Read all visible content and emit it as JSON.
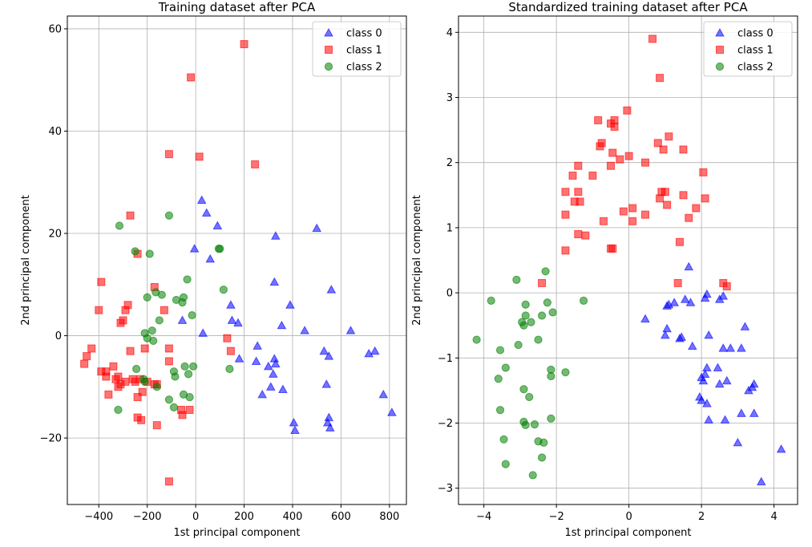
{
  "chart_data": [
    {
      "type": "scatter",
      "title": "Training dataset after PCA",
      "xlabel": "1st principal component",
      "ylabel": "2nd principal component",
      "xlim": [
        -530,
        870
      ],
      "ylim": [
        -33,
        62.5
      ],
      "xticks": [
        -400,
        -200,
        0,
        200,
        400,
        600,
        800
      ],
      "yticks": [
        -20,
        0,
        20,
        40,
        60
      ],
      "xtick_labels": [
        "−400",
        "−200",
        "0",
        "200",
        "400",
        "600",
        "800"
      ],
      "ytick_labels": [
        "−20",
        "0",
        "20",
        "40",
        "60"
      ],
      "grid": true,
      "legend_position": "top-right",
      "series": [
        {
          "name": "class 0",
          "marker": "triangle",
          "color": "#0000ff",
          "points": [
            [
              25,
              26.5
            ],
            [
              45,
              24
            ],
            [
              90,
              21.5
            ],
            [
              60,
              15
            ],
            [
              30,
              0.5
            ],
            [
              -55,
              3
            ],
            [
              -5,
              17
            ],
            [
              145,
              6
            ],
            [
              150,
              3
            ],
            [
              175,
              2.5
            ],
            [
              330,
              19.5
            ],
            [
              325,
              10.5
            ],
            [
              390,
              6
            ],
            [
              500,
              21
            ],
            [
              560,
              9
            ],
            [
              355,
              2
            ],
            [
              450,
              1
            ],
            [
              640,
              1
            ],
            [
              180,
              -4.5
            ],
            [
              250,
              -5
            ],
            [
              255,
              -2
            ],
            [
              300,
              -6
            ],
            [
              320,
              -7.5
            ],
            [
              325,
              -4.5
            ],
            [
              330,
              -5.5
            ],
            [
              360,
              -10.5
            ],
            [
              310,
              -10
            ],
            [
              275,
              -11.5
            ],
            [
              530,
              -3
            ],
            [
              550,
              -4
            ],
            [
              540,
              -9.5
            ],
            [
              715,
              -3.5
            ],
            [
              740,
              -3
            ],
            [
              775,
              -11.5
            ],
            [
              810,
              -15
            ],
            [
              405,
              -17
            ],
            [
              410,
              -18.5
            ],
            [
              550,
              -16
            ],
            [
              545,
              -17
            ],
            [
              555,
              -18
            ]
          ]
        },
        {
          "name": "class 1",
          "marker": "square",
          "color": "#ff0000",
          "points": [
            [
              200,
              57
            ],
            [
              -20,
              50.5
            ],
            [
              -110,
              35.5
            ],
            [
              15,
              35
            ],
            [
              245,
              33.5
            ],
            [
              -270,
              23.5
            ],
            [
              -240,
              16
            ],
            [
              -390,
              10.5
            ],
            [
              -400,
              5
            ],
            [
              -280,
              6
            ],
            [
              -290,
              5
            ],
            [
              -300,
              3
            ],
            [
              -310,
              2.5
            ],
            [
              -170,
              9.5
            ],
            [
              -130,
              5
            ],
            [
              -460,
              -5.5
            ],
            [
              -450,
              -4
            ],
            [
              -430,
              -2.5
            ],
            [
              -390,
              -7
            ],
            [
              -370,
              -8
            ],
            [
              -360,
              -11.5
            ],
            [
              -370,
              -7
            ],
            [
              -340,
              -6
            ],
            [
              -330,
              -8.5
            ],
            [
              -320,
              -8
            ],
            [
              -310,
              -9.5
            ],
            [
              -320,
              -10
            ],
            [
              -290,
              -9
            ],
            [
              -270,
              -3
            ],
            [
              -260,
              -8.5
            ],
            [
              -250,
              -9
            ],
            [
              -240,
              -12
            ],
            [
              -230,
              -8.5
            ],
            [
              -220,
              -11
            ],
            [
              -210,
              -2.5
            ],
            [
              -200,
              -9
            ],
            [
              -170,
              -9.5
            ],
            [
              -160,
              -9.5
            ],
            [
              -110,
              -2.5
            ],
            [
              -110,
              -5
            ],
            [
              -60,
              -14.5
            ],
            [
              -55,
              -15.5
            ],
            [
              -25,
              -14.5
            ],
            [
              -240,
              -16
            ],
            [
              -225,
              -16.5
            ],
            [
              -160,
              -17.5
            ],
            [
              -110,
              -28.5
            ],
            [
              130,
              -0.5
            ],
            [
              145,
              -3
            ]
          ]
        },
        {
          "name": "class 2",
          "marker": "circle",
          "color": "#008000",
          "points": [
            [
              -315,
              21.5
            ],
            [
              -250,
              16.5
            ],
            [
              -190,
              16
            ],
            [
              -110,
              23.5
            ],
            [
              -80,
              7
            ],
            [
              -35,
              11
            ],
            [
              95,
              17
            ],
            [
              100,
              17
            ],
            [
              115,
              9
            ],
            [
              -150,
              3
            ],
            [
              -165,
              8.5
            ],
            [
              -140,
              8
            ],
            [
              -200,
              7.5
            ],
            [
              -180,
              1
            ],
            [
              -175,
              -1
            ],
            [
              -200,
              -0.5
            ],
            [
              -210,
              0.5
            ],
            [
              -55,
              6.5
            ],
            [
              -50,
              7.5
            ],
            [
              -15,
              4
            ],
            [
              -245,
              -6.5
            ],
            [
              -215,
              -8.5
            ],
            [
              -210,
              -9
            ],
            [
              -160,
              -10
            ],
            [
              -90,
              -7
            ],
            [
              -85,
              -8
            ],
            [
              -45,
              -6
            ],
            [
              -10,
              -6
            ],
            [
              -30,
              -7.5
            ],
            [
              -25,
              -12
            ],
            [
              -50,
              -11.5
            ],
            [
              -110,
              -12.5
            ],
            [
              -90,
              -14
            ],
            [
              -320,
              -14.5
            ],
            [
              140,
              -6.5
            ]
          ]
        }
      ]
    },
    {
      "type": "scatter",
      "title": "Standardized training dataset after PCA",
      "xlabel": "1st principal component",
      "ylabel": "2nd principal component",
      "xlim": [
        -4.7,
        4.65
      ],
      "ylim": [
        -3.25,
        4.25
      ],
      "xticks": [
        -4,
        -2,
        0,
        2,
        4
      ],
      "yticks": [
        -3,
        -2,
        -1,
        0,
        1,
        2,
        3,
        4
      ],
      "xtick_labels": [
        "−4",
        "−2",
        "0",
        "2",
        "4"
      ],
      "ytick_labels": [
        "−3",
        "−2",
        "−1",
        "0",
        "1",
        "2",
        "3",
        "4"
      ],
      "grid": true,
      "legend_position": "top-right",
      "series": [
        {
          "name": "class 0",
          "marker": "triangle",
          "color": "#0000ff",
          "points": [
            [
              0.45,
              -0.4
            ],
            [
              1.05,
              -0.2
            ],
            [
              1.1,
              -0.18
            ],
            [
              1.25,
              -0.15
            ],
            [
              1.55,
              -0.1
            ],
            [
              1.65,
              0.4
            ],
            [
              1.7,
              -0.15
            ],
            [
              2.1,
              -0.08
            ],
            [
              2.15,
              -0.02
            ],
            [
              2.5,
              -0.1
            ],
            [
              2.6,
              -0.05
            ],
            [
              1.05,
              -0.55
            ],
            [
              1.0,
              -0.65
            ],
            [
              1.4,
              -0.7
            ],
            [
              1.45,
              -0.68
            ],
            [
              1.75,
              -0.82
            ],
            [
              2.2,
              -0.65
            ],
            [
              2.6,
              -0.85
            ],
            [
              2.8,
              -0.85
            ],
            [
              3.1,
              -0.85
            ],
            [
              3.2,
              -0.52
            ],
            [
              2.15,
              -1.15
            ],
            [
              2.1,
              -1.25
            ],
            [
              2.0,
              -1.3
            ],
            [
              2.05,
              -1.35
            ],
            [
              2.45,
              -1.15
            ],
            [
              2.5,
              -1.4
            ],
            [
              2.7,
              -1.35
            ],
            [
              3.3,
              -1.5
            ],
            [
              3.4,
              -1.45
            ],
            [
              3.45,
              -1.4
            ],
            [
              1.95,
              -1.6
            ],
            [
              2.0,
              -1.65
            ],
            [
              2.15,
              -1.7
            ],
            [
              2.2,
              -1.95
            ],
            [
              2.65,
              -1.95
            ],
            [
              3.1,
              -1.85
            ],
            [
              3.45,
              -1.85
            ],
            [
              3.0,
              -2.3
            ],
            [
              4.2,
              -2.4
            ],
            [
              3.65,
              -2.9
            ]
          ]
        },
        {
          "name": "class 1",
          "marker": "square",
          "color": "#ff0000",
          "points": [
            [
              0.65,
              3.9
            ],
            [
              0.85,
              3.3
            ],
            [
              -0.05,
              2.8
            ],
            [
              -0.85,
              2.65
            ],
            [
              -0.5,
              2.6
            ],
            [
              -0.4,
              2.65
            ],
            [
              -0.4,
              2.55
            ],
            [
              -0.75,
              2.3
            ],
            [
              -0.8,
              2.25
            ],
            [
              -0.45,
              2.15
            ],
            [
              -0.25,
              2.05
            ],
            [
              0.0,
              2.1
            ],
            [
              -0.5,
              1.95
            ],
            [
              0.45,
              2.0
            ],
            [
              0.8,
              2.3
            ],
            [
              0.95,
              2.2
            ],
            [
              1.1,
              2.4
            ],
            [
              1.5,
              2.2
            ],
            [
              -1.4,
              1.95
            ],
            [
              -1.55,
              1.8
            ],
            [
              -1.0,
              1.8
            ],
            [
              -1.75,
              1.55
            ],
            [
              -1.4,
              1.55
            ],
            [
              0.85,
              1.45
            ],
            [
              0.9,
              1.55
            ],
            [
              1.0,
              1.55
            ],
            [
              1.05,
              1.35
            ],
            [
              1.5,
              1.5
            ],
            [
              1.65,
              1.15
            ],
            [
              1.85,
              1.3
            ],
            [
              2.05,
              1.85
            ],
            [
              2.1,
              1.45
            ],
            [
              -1.5,
              1.4
            ],
            [
              -1.35,
              1.4
            ],
            [
              -0.7,
              1.1
            ],
            [
              -0.15,
              1.25
            ],
            [
              0.1,
              1.3
            ],
            [
              0.1,
              1.1
            ],
            [
              0.45,
              1.2
            ],
            [
              -1.75,
              1.2
            ],
            [
              -1.4,
              0.9
            ],
            [
              -1.2,
              0.88
            ],
            [
              -0.5,
              0.68
            ],
            [
              -0.45,
              0.68
            ],
            [
              1.4,
              0.78
            ],
            [
              -1.75,
              0.65
            ],
            [
              -2.4,
              0.15
            ],
            [
              1.35,
              0.15
            ],
            [
              2.6,
              0.15
            ],
            [
              2.7,
              0.1
            ]
          ]
        },
        {
          "name": "class 2",
          "marker": "circle",
          "color": "#008000",
          "points": [
            [
              -4.2,
              -0.72
            ],
            [
              -3.8,
              -0.12
            ],
            [
              -3.1,
              0.2
            ],
            [
              -2.85,
              -0.18
            ],
            [
              -2.1,
              -0.3
            ],
            [
              -2.25,
              -0.15
            ],
            [
              -2.3,
              0.33
            ],
            [
              -1.25,
              -0.12
            ],
            [
              -2.95,
              -0.45
            ],
            [
              -2.9,
              -0.5
            ],
            [
              -2.85,
              -0.35
            ],
            [
              -2.7,
              -0.45
            ],
            [
              -2.4,
              -0.35
            ],
            [
              -2.5,
              -0.72
            ],
            [
              -3.05,
              -0.8
            ],
            [
              -3.55,
              -0.88
            ],
            [
              -3.4,
              -1.15
            ],
            [
              -3.6,
              -1.32
            ],
            [
              -2.9,
              -1.48
            ],
            [
              -2.75,
              -1.6
            ],
            [
              -2.15,
              -1.18
            ],
            [
              -2.15,
              -1.28
            ],
            [
              -1.75,
              -1.22
            ],
            [
              -3.55,
              -1.8
            ],
            [
              -2.9,
              -1.98
            ],
            [
              -2.85,
              -2.03
            ],
            [
              -2.6,
              -2.02
            ],
            [
              -2.15,
              -1.93
            ],
            [
              -3.45,
              -2.25
            ],
            [
              -2.5,
              -2.28
            ],
            [
              -2.35,
              -2.3
            ],
            [
              -3.4,
              -2.63
            ],
            [
              -2.4,
              -2.53
            ],
            [
              -2.65,
              -2.8
            ]
          ]
        }
      ]
    }
  ]
}
